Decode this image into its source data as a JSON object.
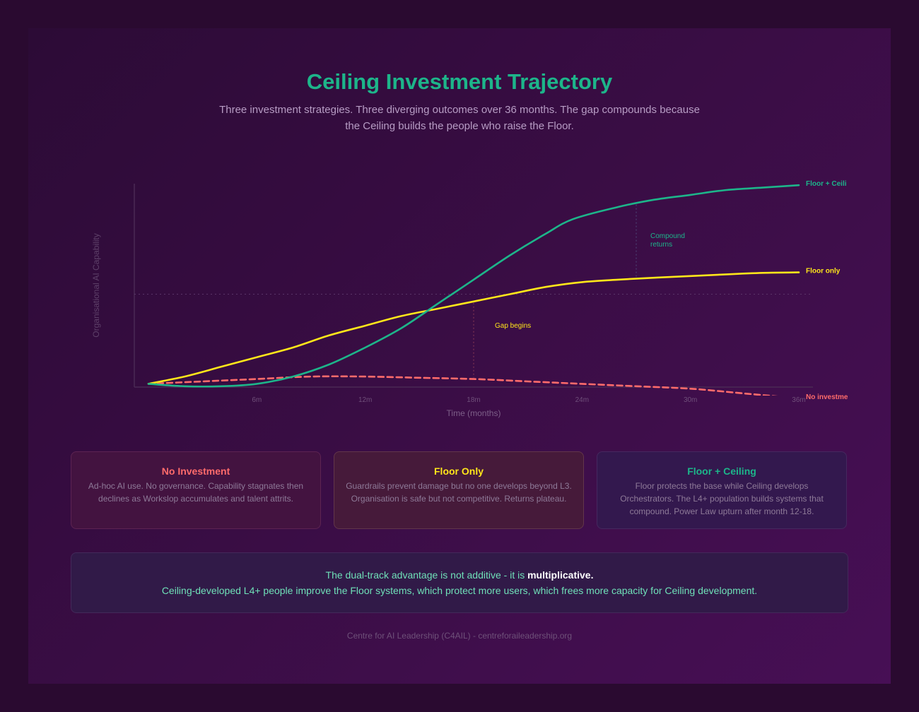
{
  "header": {
    "title": "Ceiling Investment Trajectory",
    "subtitle": "Three investment strategies. Three diverging outcomes over 36 months. The gap compounds because the Ceiling builds the people who raise the Floor."
  },
  "chart_data": {
    "type": "line",
    "xlabel": "Time (months)",
    "ylabel": "Organisational AI Capability",
    "x_ticks": [
      "6m",
      "12m",
      "18m",
      "24m",
      "30m",
      "36m"
    ],
    "xlim": [
      0,
      36
    ],
    "ylim": [
      0,
      100
    ],
    "grid": false,
    "reference_line_y": 50,
    "series": [
      {
        "name": "Floor + Ceiling",
        "label_text": "Floor + Ceili",
        "color": "#1db58a",
        "style": "solid",
        "x": [
          0,
          2,
          4,
          6,
          8,
          10,
          12,
          14,
          16,
          18,
          20,
          22,
          23.5,
          26,
          28,
          30,
          32,
          34,
          36
        ],
        "y": [
          13,
          12,
          12,
          13,
          16,
          21,
          28,
          36,
          46,
          56,
          66,
          75,
          81,
          86,
          89,
          91,
          93,
          94,
          95
        ]
      },
      {
        "name": "Floor only",
        "label_text": "Floor only",
        "color": "#ffe61a",
        "style": "solid",
        "x": [
          0,
          2,
          4,
          6,
          8,
          10,
          12,
          14,
          16,
          18,
          20,
          22,
          24,
          26,
          28,
          30,
          32,
          34,
          36
        ],
        "y": [
          13,
          16,
          20,
          24,
          28,
          33,
          37,
          41,
          44,
          47,
          50,
          53,
          55,
          56,
          56.8,
          57.5,
          58.2,
          58.8,
          59
        ]
      },
      {
        "name": "No investment",
        "label_text": "No investme",
        "color": "#ff6b6b",
        "style": "dashed",
        "x": [
          0,
          3,
          6,
          9,
          12,
          15,
          18,
          21,
          24,
          27,
          30,
          33,
          36
        ],
        "y": [
          13,
          14,
          15,
          16,
          16,
          15.5,
          15,
          14,
          13,
          12,
          11,
          9,
          7
        ]
      }
    ],
    "annotations": [
      {
        "text": "Gap begins",
        "x": 18,
        "color": "#ffe61a"
      },
      {
        "text": "Compound",
        "text2": "returns",
        "x": 27,
        "color": "#1db58a"
      }
    ]
  },
  "cards": [
    {
      "title": "No Investment",
      "body": "Ad-hoc AI use. No governance. Capability stagnates then declines as Workslop accumulates and talent attrits."
    },
    {
      "title": "Floor Only",
      "body": "Guardrails prevent damage but no one develops beyond L3. Organisation is safe but not competitive. Returns plateau."
    },
    {
      "title": "Floor + Ceiling",
      "body": "Floor protects the base while Ceiling develops Orchestrators. The L4+ population builds systems that compound. Power Law upturn after month 12-18."
    }
  ],
  "callout": {
    "line1_prefix": "The dual-track advantage is not additive - it is ",
    "line1_emphasis": "multiplicative.",
    "line2": "Ceiling-developed L4+ people improve the Floor systems, which protect more users, which frees more capacity for Ceiling development."
  },
  "footer": "Centre for AI Leadership (C4AIL) - centreforaileadership.org",
  "colors": {
    "background": "#2a0a30",
    "accent_green": "#1db58a",
    "accent_yellow": "#ffe61a",
    "accent_red": "#ff6b6b"
  }
}
